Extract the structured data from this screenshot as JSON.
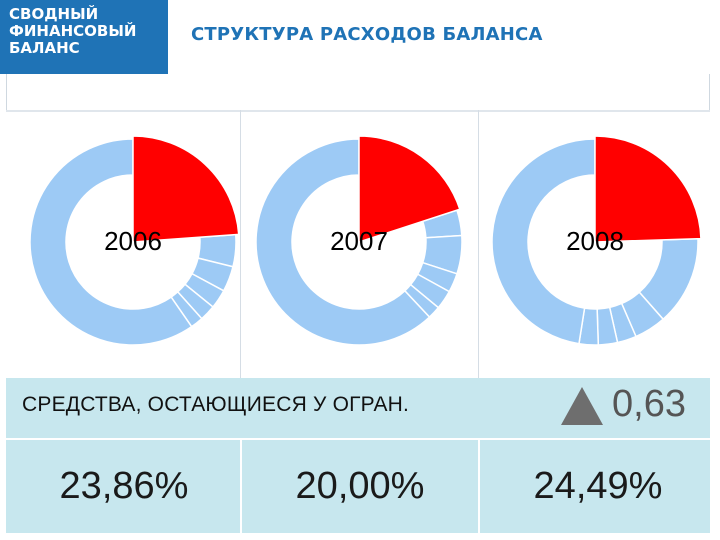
{
  "logo": {
    "lines": [
      "СВОДНЫЙ",
      "ФИНАНСОВЫЙ",
      "БАЛАНС"
    ]
  },
  "title": "СТРУКТУРА РАСХОДОВ БАЛАНСА",
  "colors": {
    "highlight": "#ff0000",
    "rest": "#9dcaf5",
    "separator": "#ffffff",
    "brand": "#1f73b6",
    "band": "#c7e7ee"
  },
  "chart_data": [
    {
      "type": "pie",
      "title": "",
      "year_label": "2006",
      "categories": [
        "Средства, остающиеся у огран.",
        "",
        "",
        "",
        "",
        "",
        ""
      ],
      "values": [
        23.86,
        5,
        4,
        3,
        2.5,
        2,
        59.64
      ]
    },
    {
      "type": "pie",
      "title": "",
      "year_label": "2007",
      "categories": [
        "Средства, остающиеся у огран.",
        "",
        "",
        "",
        "",
        "",
        ""
      ],
      "values": [
        20.0,
        4,
        6,
        3,
        3,
        2,
        62.0
      ]
    },
    {
      "type": "pie",
      "title": "",
      "year_label": "2008",
      "categories": [
        "Средства, остающиеся у огран.",
        "",
        "",
        "",
        "",
        "",
        ""
      ],
      "values": [
        24.49,
        14,
        5,
        3,
        3,
        3,
        47.51
      ]
    }
  ],
  "summary": {
    "label": "СРЕДСТВА, ОСТАЮЩИЕСЯ У ОГРАН.",
    "delta": "0,63",
    "percentages": [
      "23,86%",
      "20,00%",
      "24,49%"
    ]
  }
}
